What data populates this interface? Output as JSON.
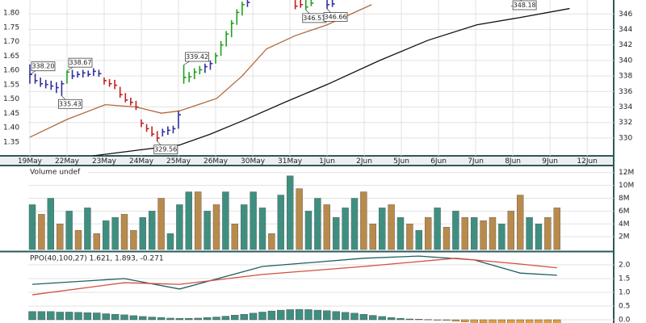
{
  "chart_data": [
    {
      "type": "ohlc",
      "xlim": [
        -0.3,
        110
      ],
      "xticks": [
        {
          "value": 0,
          "label": "19May"
        },
        {
          "value": 7,
          "label": "22May"
        },
        {
          "value": 14,
          "label": "23May"
        },
        {
          "value": 21,
          "label": "24May"
        },
        {
          "value": 28,
          "label": "25May"
        },
        {
          "value": 35,
          "label": "26May"
        },
        {
          "value": 42,
          "label": "30May"
        },
        {
          "value": 49,
          "label": "31May"
        },
        {
          "value": 56,
          "label": "1Jun"
        },
        {
          "value": 63,
          "label": "2Jun"
        },
        {
          "value": 70,
          "label": "5Jun"
        },
        {
          "value": 77,
          "label": "6Jun"
        },
        {
          "value": 84,
          "label": "7Jun"
        },
        {
          "value": 91,
          "label": "8Jun"
        },
        {
          "value": 98,
          "label": "9Jun"
        },
        {
          "value": 105,
          "label": "12Jun"
        }
      ],
      "ylim": [
        327.7,
        347.8
      ],
      "yticks": [
        330,
        332,
        334,
        336,
        338,
        340,
        342,
        344,
        346
      ],
      "y2lim": [
        1.302,
        1.845
      ],
      "y2ticks": [
        1.35,
        {
          "value": 1.4,
          "label": "1.40"
        },
        1.45,
        {
          "value": 1.5,
          "label": "1.50"
        },
        1.55,
        {
          "value": 1.6,
          "label": "1.60"
        },
        1.65,
        {
          "value": 1.7,
          "label": "1.70"
        },
        1.75,
        {
          "value": 1.8,
          "label": "1.80"
        }
      ],
      "grid": true,
      "x": [
        0,
        1,
        2,
        3,
        4,
        5,
        6,
        7,
        8,
        9,
        10,
        11,
        12,
        13,
        14,
        15,
        16,
        17,
        18,
        19,
        20,
        21,
        22,
        23,
        24,
        25,
        26,
        27,
        28,
        29,
        30,
        31,
        32,
        33,
        34,
        35,
        36,
        37,
        38,
        39,
        40,
        41,
        50,
        51,
        52,
        53,
        56,
        57
      ],
      "high": [
        339.5,
        338.3,
        337.8,
        337.5,
        337.4,
        337.2,
        337.4,
        338.67,
        338.8,
        338.6,
        338.8,
        338.7,
        339.0,
        338.8,
        337.8,
        337.6,
        337.5,
        336.6,
        335.8,
        335.2,
        334.8,
        332.4,
        331.8,
        331.5,
        330.9,
        331.2,
        331.5,
        331.6,
        333.5,
        339.42,
        338.5,
        339.0,
        339.3,
        339.6,
        340.0,
        341.0,
        342.5,
        343.8,
        345.2,
        346.6,
        347.6,
        347.9,
        347.9,
        347.9,
        347.9,
        347.9,
        347.9,
        347.9
      ],
      "low": [
        337.0,
        337.0,
        336.6,
        336.4,
        336.2,
        335.8,
        335.43,
        337.0,
        337.6,
        337.8,
        337.8,
        337.9,
        338.0,
        337.9,
        336.9,
        336.6,
        336.3,
        335.2,
        334.6,
        334.2,
        333.6,
        331.4,
        330.8,
        330.2,
        329.56,
        330.2,
        330.4,
        330.6,
        331.2,
        337.0,
        337.2,
        337.6,
        338.2,
        338.4,
        338.8,
        339.6,
        340.6,
        341.8,
        343.0,
        344.6,
        345.8,
        346.9,
        346.6,
        346.8,
        346.51,
        347.0,
        346.66,
        346.9
      ],
      "close": [
        338.2,
        337.4,
        337.0,
        336.9,
        336.7,
        336.5,
        337.0,
        338.5,
        338.0,
        338.2,
        338.4,
        338.2,
        338.6,
        338.3,
        337.4,
        337.0,
        336.8,
        335.6,
        334.9,
        334.6,
        334.0,
        331.9,
        331.2,
        330.5,
        330.0,
        330.8,
        331.0,
        331.2,
        333.0,
        337.8,
        337.9,
        338.5,
        338.8,
        339.2,
        339.6,
        340.6,
        342.0,
        343.4,
        344.8,
        346.2,
        347.2,
        347.5,
        347.0,
        347.2,
        346.9,
        347.4,
        347.2,
        347.3
      ],
      "colors": [
        "#3030a0",
        "#3030a0",
        "#3030a0",
        "#3030a0",
        "#3030a0",
        "#3030a0",
        "#3030a0",
        "#20a020",
        "#3030a0",
        "#3030a0",
        "#3030a0",
        "#3030a0",
        "#3030a0",
        "#3030a0",
        "#c02020",
        "#c02020",
        "#c02020",
        "#c02020",
        "#c02020",
        "#c02020",
        "#c02020",
        "#c02020",
        "#c02020",
        "#c02020",
        "#c02020",
        "#3030a0",
        "#3030a0",
        "#3030a0",
        "#3030a0",
        "#20a020",
        "#20a020",
        "#20a020",
        "#20a020",
        "#3030a0",
        "#3030a0",
        "#20a020",
        "#20a020",
        "#20a020",
        "#20a020",
        "#20a020",
        "#20a020",
        "#3030a0",
        "#c02020",
        "#c02020",
        "#20a020",
        "#20a020",
        "#3030a0",
        "#3030a0"
      ],
      "lines": [
        {
          "color": "#b06a3a",
          "x": [
            0,
            7,
            14.2,
            20,
            24.8,
            28.2,
            35.2,
            40,
            44.6,
            50,
            56,
            64.4
          ],
          "values": [
            330.1,
            332.4,
            334.3,
            334.0,
            333.2,
            333.5,
            335.1,
            338.0,
            341.5,
            343.2,
            344.6,
            347.2
          ]
        },
        {
          "color": "#111111",
          "x": [
            11.9,
            20,
            28.2,
            34,
            40,
            48,
            56,
            65.9,
            75,
            84.2,
            92,
            101.7
          ],
          "values": [
            327.7,
            328.4,
            329.1,
            330.5,
            332.2,
            334.6,
            336.9,
            340.0,
            342.6,
            344.6,
            345.5,
            346.7
          ]
        }
      ],
      "annotations": [
        {
          "x": 0,
          "value": 338.2,
          "label": "338.20"
        },
        {
          "x": 7,
          "value": 338.67,
          "label": "338.67"
        },
        {
          "x": 6,
          "value": 335.43,
          "label": "335.43"
        },
        {
          "x": 29,
          "value": 339.42,
          "label": "339.42"
        },
        {
          "x": 24,
          "value": 329.56,
          "label": "329.56"
        },
        {
          "x": 52,
          "value": 346.51,
          "label": "346.51"
        },
        {
          "x": 56,
          "value": 346.66,
          "label": "346.66"
        },
        {
          "x": 90.7,
          "value": 348.18,
          "label": "348.18"
        }
      ]
    },
    {
      "type": "bar",
      "title": "Volume undef",
      "xlim": [
        -0.44,
        63.16
      ],
      "ylim": [
        -0.25,
        13.1
      ],
      "yticks": [
        {
          "value": 2,
          "label": "2M"
        },
        {
          "value": 4,
          "label": "4M"
        },
        {
          "value": 6,
          "label": "6M"
        },
        {
          "value": 8,
          "label": "8M"
        },
        {
          "value": 10,
          "label": "10M"
        },
        {
          "value": 12,
          "label": "12M"
        }
      ],
      "grid": true,
      "values": [
        7,
        5.5,
        8,
        4,
        6,
        3,
        6.5,
        2.5,
        4.5,
        5,
        5.5,
        3,
        5,
        6,
        8,
        2.5,
        7,
        9,
        9,
        6,
        7,
        9,
        4,
        7,
        9,
        6.5,
        2.5,
        8.5,
        11.5,
        9.5,
        6,
        8,
        7,
        5,
        6.5,
        8,
        9,
        4,
        6.5,
        7,
        5,
        4,
        3,
        5,
        6.5,
        3.5,
        6,
        5,
        5,
        4.5,
        5,
        4,
        6,
        8.5,
        5,
        4,
        5,
        6.5
      ],
      "colors": [
        "#3f8f80",
        "#b88a4c",
        "#3f8f80",
        "#b88a4c",
        "#3f8f80",
        "#b88a4c",
        "#3f8f80",
        "#b88a4c",
        "#3f8f80",
        "#3f8f80",
        "#b88a4c",
        "#b88a4c",
        "#3f8f80",
        "#3f8f80",
        "#b88a4c",
        "#3f8f80",
        "#3f8f80",
        "#3f8f80",
        "#b88a4c",
        "#3f8f80",
        "#b88a4c",
        "#3f8f80",
        "#b88a4c",
        "#3f8f80",
        "#3f8f80",
        "#3f8f80",
        "#b88a4c",
        "#3f8f80",
        "#3f8f80",
        "#b88a4c",
        "#3f8f80",
        "#3f8f80",
        "#b88a4c",
        "#3f8f80",
        "#3f8f80",
        "#3f8f80",
        "#b88a4c",
        "#b88a4c",
        "#3f8f80",
        "#b88a4c",
        "#3f8f80",
        "#b88a4c",
        "#3f8f80",
        "#b88a4c",
        "#3f8f80",
        "#b88a4c",
        "#3f8f80",
        "#b88a4c",
        "#3f8f80",
        "#b88a4c",
        "#b88a4c",
        "#3f8f80",
        "#b88a4c",
        "#b88a4c",
        "#3f8f80",
        "#3f8f80",
        "#b88a4c",
        "#b88a4c"
      ]
    },
    {
      "type": "ppo",
      "title": "PPO(40,100,27) 1.621, 1.893, -0.271",
      "xlim": [
        -0.44,
        63.16
      ],
      "ylim": [
        -0.118,
        2.47
      ],
      "yticks": [
        {
          "value": 0,
          "label": "0.0"
        },
        0.5,
        {
          "value": 1,
          "label": "1.0"
        },
        1.5,
        {
          "value": 2,
          "label": "2.0"
        }
      ],
      "grid": true,
      "series": [
        {
          "color": "#1f5f5f",
          "x": [
            0,
            10,
            16,
            25,
            36,
            42,
            48,
            53,
            57
          ],
          "values": [
            1.29,
            1.5,
            1.12,
            1.94,
            2.24,
            2.32,
            2.18,
            1.7,
            1.621
          ]
        },
        {
          "color": "#d05040",
          "x": [
            0,
            10,
            16,
            25,
            36,
            46,
            53,
            57
          ],
          "values": [
            0.91,
            1.35,
            1.29,
            1.65,
            1.94,
            2.24,
            2.03,
            1.893
          ]
        }
      ],
      "histogram": {
        "color": "#3f8f80",
        "negative_color": "#e0a040",
        "values": [
          0.3,
          0.3,
          0.3,
          0.28,
          0.28,
          0.27,
          0.26,
          0.25,
          0.22,
          0.2,
          0.18,
          0.15,
          0.12,
          0.1,
          0.08,
          0.06,
          0.05,
          0.05,
          0.06,
          0.08,
          0.1,
          0.13,
          0.17,
          0.2,
          0.24,
          0.28,
          0.32,
          0.35,
          0.37,
          0.38,
          0.37,
          0.35,
          0.33,
          0.3,
          0.27,
          0.24,
          0.2,
          0.16,
          0.12,
          0.08,
          0.05,
          0.03,
          0.02,
          0.01,
          0,
          -0.02,
          -0.05,
          -0.08,
          -0.1,
          -0.12,
          -0.15,
          -0.18,
          -0.2,
          -0.22,
          -0.24,
          -0.26,
          -0.27,
          -0.271
        ]
      }
    }
  ]
}
